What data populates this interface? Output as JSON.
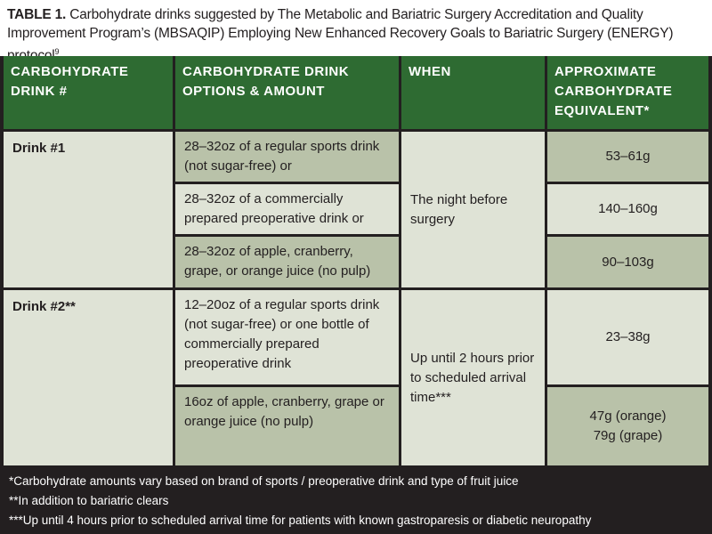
{
  "title": {
    "label": "TABLE 1.",
    "text": "Carbohydrate drinks suggested by The Metabolic and Bariatric Surgery Accreditation and Quality Improvement Program’s (MBSAQIP) Employing New Enhanced Recovery Goals to Bariatric Surgery (ENERGY) protocol",
    "ref": "9"
  },
  "headers": {
    "col1": "CARBOHYDRATE DRINK #",
    "col2": "CARBOHYDRATE DRINK OPTIONS & AMOUNT",
    "col3": "WHEN",
    "col4": "APPROXIMATE CARBOHYDRATE EQUIVALENT*"
  },
  "drink1": {
    "label": "Drink #1",
    "when": "The night before surgery",
    "options": [
      "28–32oz of a regular sports drink (not sugar-free) or",
      "28–32oz of a commercially prepared preoperative drink or",
      "28–32oz of apple, cranberry, grape, or orange juice (no pulp)"
    ],
    "amounts": [
      "53–61g",
      "140–160g",
      "90–103g"
    ]
  },
  "drink2": {
    "label": "Drink #2**",
    "when": "Up until 2 hours prior to scheduled arrival time***",
    "options": [
      "12–20oz of a regular sports drink (not sugar-free) or one bottle of commercially prepared preoperative drink",
      "16oz of apple, cranberry, grape or orange juice (no pulp)"
    ],
    "amounts": [
      "23–38g",
      "47g (orange)",
      "79g (grape)"
    ]
  },
  "footnotes": [
    "*Carbohydrate amounts vary based on brand of sports / preoperative drink and type of fruit juice",
    "**In addition to bariatric clears",
    "***Up until 4 hours prior to scheduled arrival time for patients with known gastroparesis or diabetic neuropathy"
  ]
}
